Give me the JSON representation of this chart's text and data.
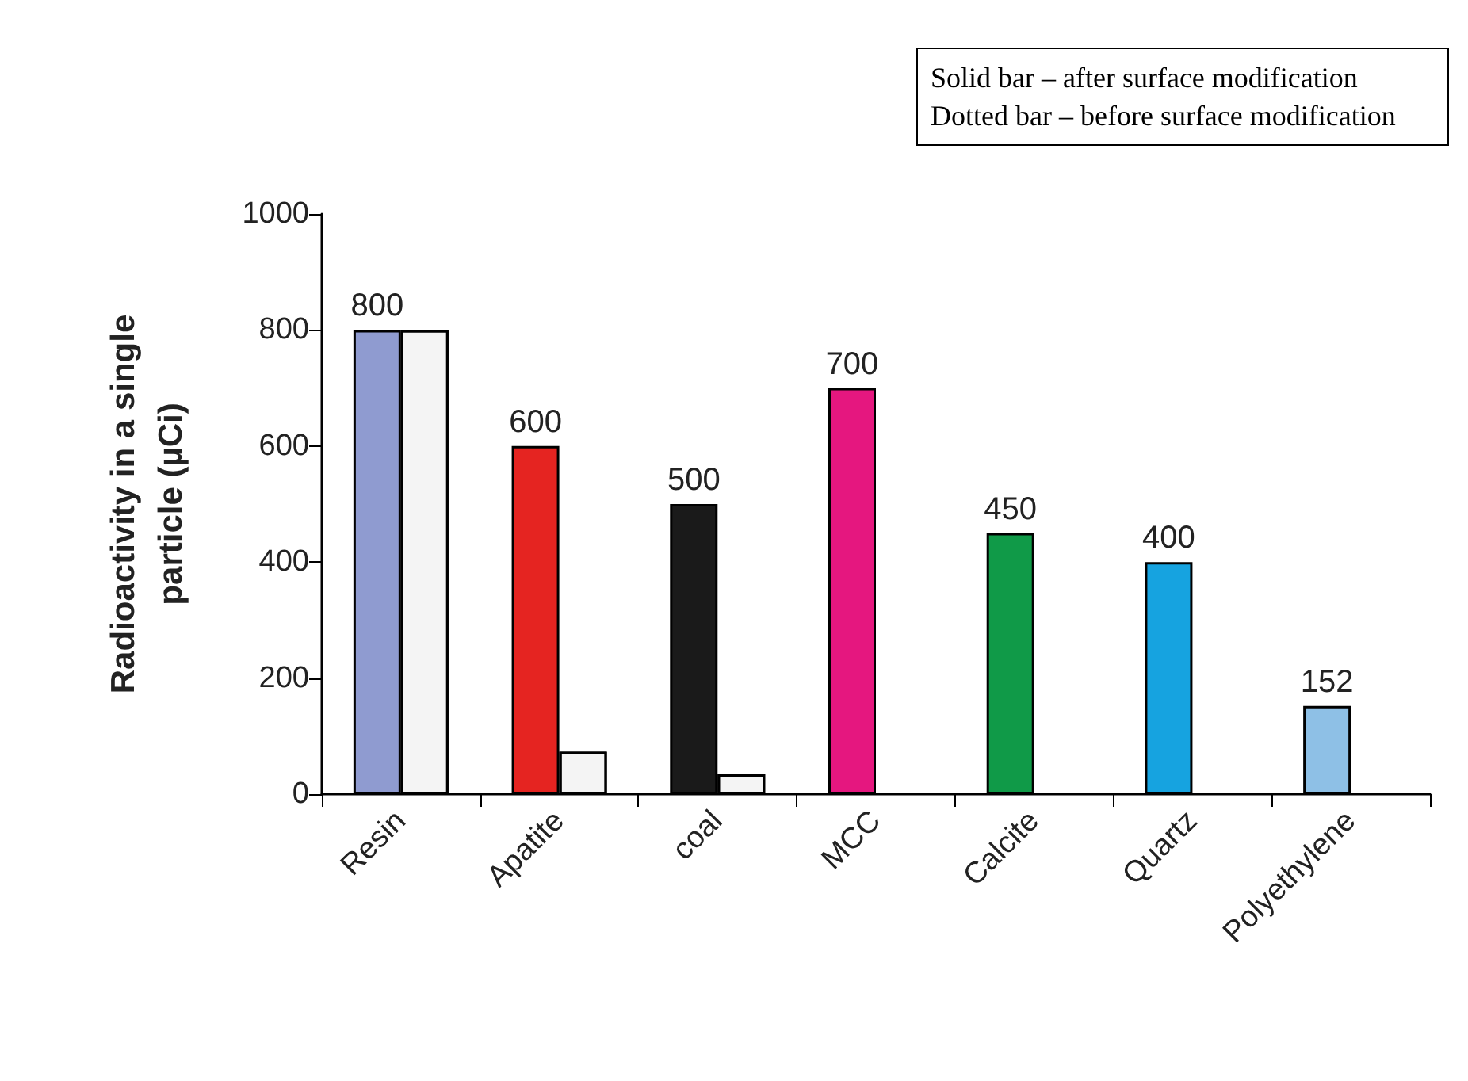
{
  "chart_data": {
    "type": "bar",
    "ylabel": "Radioactivity in a single\nparticle (µCi)",
    "categories": [
      "Resin",
      "Apatite",
      "coal",
      "MCC",
      "Calcite",
      "Quartz",
      "Polyethylene"
    ],
    "series": [
      {
        "colors": [
          "#8f9bd0",
          "#e52421",
          "#1a1a1a",
          "#e5177f",
          "#109a48",
          "#16a3e0",
          "#8ec0e6"
        ],
        "values": [
          800,
          600,
          500,
          700,
          450,
          400,
          152
        ],
        "value_labels": [
          "800",
          "600",
          "500",
          "700",
          "450",
          "400",
          "152"
        ]
      },
      {
        "color": "#f4f4f4",
        "values": [
          800,
          73,
          34,
          null,
          null,
          null,
          null
        ]
      }
    ],
    "ylim": [
      0,
      1000
    ],
    "yticks": [
      0,
      200,
      400,
      600,
      800,
      1000
    ],
    "grid": false,
    "annotations": [
      "Solid bar – after surface modification",
      "Dotted bar – before surface modification"
    ]
  }
}
